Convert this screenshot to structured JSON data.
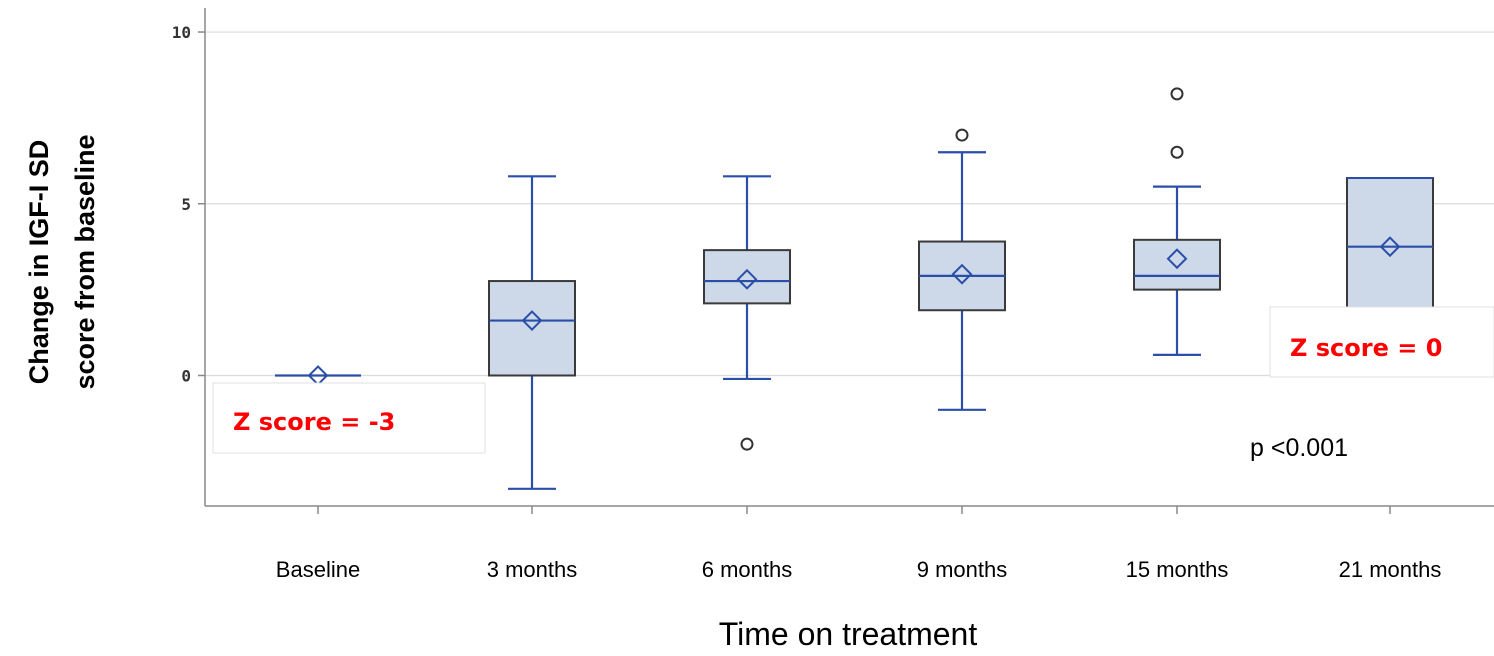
{
  "chart_data": {
    "type": "box",
    "xlabel": "Time on treatment",
    "ylabel_lines": [
      "Change in IGF-I SD",
      "score from baseline"
    ],
    "ylim": [
      -3.8,
      10.7
    ],
    "yticks": [
      0,
      5,
      10
    ],
    "ytick_labels": [
      "0",
      "5",
      "10"
    ],
    "grid": "horizontal",
    "categories": [
      "Baseline",
      "3 months",
      "6 months",
      "9 months",
      "15 months",
      "21 months"
    ],
    "boxes": [
      {
        "category": "Baseline",
        "min": 0,
        "q1": 0,
        "median": 0,
        "q3": 0,
        "max": 0,
        "mean": 0,
        "outliers": []
      },
      {
        "category": "3 months",
        "min": -3.3,
        "q1": 0,
        "median": 1.6,
        "q3": 2.75,
        "max": 5.8,
        "mean": 1.6,
        "outliers": []
      },
      {
        "category": "6 months",
        "min": -0.1,
        "q1": 2.1,
        "median": 2.75,
        "q3": 3.65,
        "max": 5.8,
        "mean": 2.8,
        "outliers": [
          -2.0
        ]
      },
      {
        "category": "9 months",
        "min": -1.0,
        "q1": 1.9,
        "median": 2.9,
        "q3": 3.9,
        "max": 6.5,
        "mean": 2.95,
        "outliers": [
          7.0
        ]
      },
      {
        "category": "15 months",
        "min": 0.6,
        "q1": 2.5,
        "median": 2.9,
        "q3": 3.95,
        "max": 5.5,
        "mean": 3.4,
        "outliers": [
          6.5,
          8.2
        ]
      },
      {
        "category": "21 months",
        "min": 1.8,
        "q1": 1.8,
        "median": 3.75,
        "q3": 5.75,
        "max": 5.75,
        "mean": 3.75,
        "outliers": []
      }
    ],
    "annotations": [
      {
        "id": "z-baseline",
        "text": "Z score = -3"
      },
      {
        "id": "z-21m",
        "text": "Z score = 0"
      },
      {
        "id": "p-value",
        "text": "p <0.001"
      }
    ],
    "colors": {
      "box_fill": "#cdd8e9",
      "box_edge": "#3a3a3a",
      "whisker": "#2b4fa8",
      "median": "#2b4fa8",
      "mean_marker": "#2b4fa8",
      "grid": "#dcdcdc",
      "annotation_red": "#ff0000"
    }
  }
}
